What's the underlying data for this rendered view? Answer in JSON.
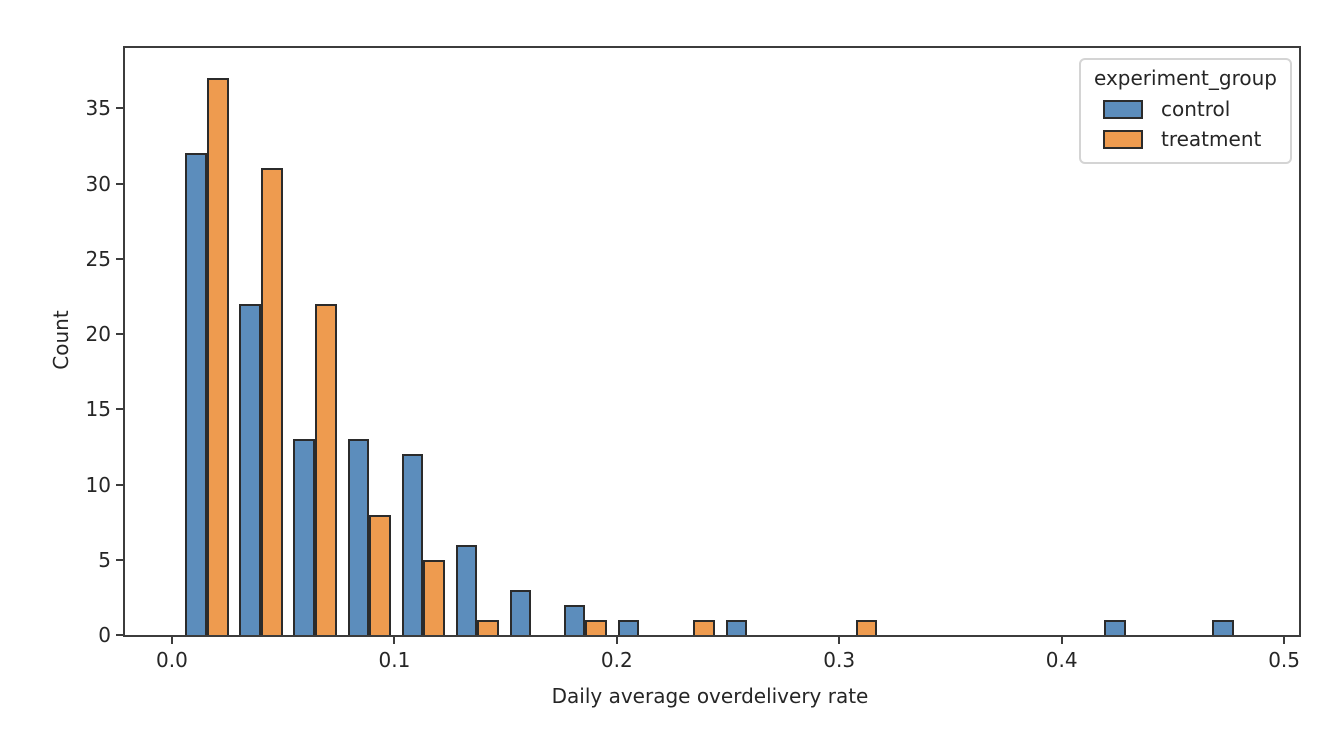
{
  "chart_data": {
    "type": "bar",
    "subtype": "grouped-histogram",
    "title": "",
    "xlabel": "Daily average overdelivery rate",
    "ylabel": "Count",
    "legend": {
      "title": "experiment_group",
      "position": "upper right",
      "entries": [
        {
          "label": "control",
          "color": "#5C8DBC"
        },
        {
          "label": "treatment",
          "color": "#EE9B4F"
        }
      ]
    },
    "bins": {
      "start": 0.0036,
      "width": 0.0243,
      "count": 20,
      "bar_shrink": 0.8
    },
    "series": [
      {
        "name": "control",
        "color": "#5C8DBC",
        "values": [
          32,
          22,
          13,
          13,
          12,
          6,
          3,
          2,
          1,
          0,
          1,
          0,
          0,
          0,
          0,
          0,
          0,
          1,
          0,
          1
        ]
      },
      {
        "name": "treatment",
        "color": "#EE9B4F",
        "values": [
          37,
          31,
          22,
          8,
          5,
          1,
          0,
          1,
          0,
          1,
          0,
          0,
          1,
          0,
          0,
          0,
          0,
          0,
          0,
          0
        ]
      }
    ],
    "x_ticks": {
      "values": [
        0.0,
        0.1,
        0.2,
        0.3,
        0.4,
        0.5
      ],
      "labels": [
        "0.0",
        "0.1",
        "0.2",
        "0.3",
        "0.4",
        "0.5"
      ]
    },
    "y_ticks": {
      "values": [
        0,
        5,
        10,
        15,
        20,
        25,
        30,
        35
      ],
      "labels": [
        "0",
        "5",
        "10",
        "15",
        "20",
        "25",
        "30",
        "35"
      ]
    },
    "xlim": [
      -0.0211,
      0.5067
    ],
    "ylim": [
      0,
      39.0
    ],
    "grid": false,
    "edge_color": "#2b2b2b",
    "spine_color": "#3c3c3c",
    "background_color": "#ffffff"
  }
}
